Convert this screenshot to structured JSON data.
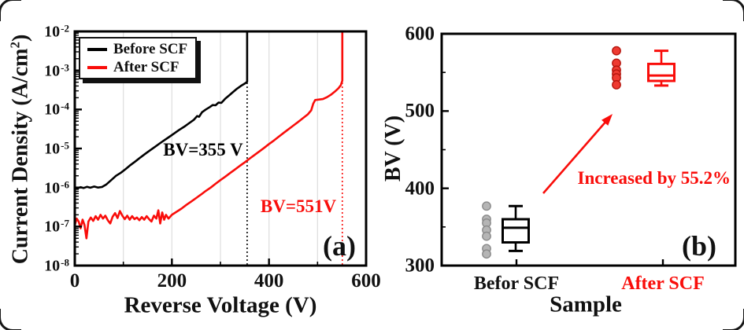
{
  "figure": {
    "panel_a": {
      "label": "(a)",
      "x_axis": {
        "title": "Reverse Voltage (V)",
        "min": 0,
        "max": 600,
        "major_ticks": [
          0,
          200,
          400,
          600
        ],
        "minor_ticks": [
          100,
          300,
          500
        ]
      },
      "y_axis": {
        "title_prefix": "Current Density (A/cm",
        "title_sup": "2",
        "title_suffix": ")",
        "base": "10",
        "tick_exponents": [
          -2,
          -3,
          -4,
          -5,
          -6,
          -7,
          -8
        ]
      },
      "legend": [
        {
          "label": "Before SCF",
          "color": "#000000"
        },
        {
          "label": "After SCF",
          "color": "#f90d0a"
        }
      ],
      "annotations": {
        "bv_before": "BV=355 V",
        "bv_after": "BV=551V"
      }
    },
    "panel_b": {
      "label": "(b)",
      "x_axis": {
        "title": "Sample",
        "categories": [
          {
            "label": "Befor SCF",
            "color": "#111111"
          },
          {
            "label": "After SCF",
            "color": "#f90d0a"
          }
        ]
      },
      "y_axis": {
        "title": "BV (V)",
        "min": 300,
        "max": 600,
        "major_ticks": [
          600,
          500,
          400,
          300
        ],
        "minor_ticks": [
          550,
          450,
          350
        ]
      },
      "annotation": {
        "text": "Increased by 55.2%"
      }
    }
  },
  "colors": {
    "black": "#000000",
    "red": "#f90d0a",
    "gridline": "#e0e0e0",
    "gray_dot_fill": "#b5b5b5",
    "gray_dot_stroke": "#8a8a8a",
    "red_dot_fill": "#ee3a31",
    "red_dot_stroke": "#b5150d"
  },
  "chart_data": [
    {
      "type": "line",
      "panel": "a",
      "title": "",
      "xlabel": "Reverse Voltage (V)",
      "ylabel": "Current Density (A/cm2)",
      "x_scale": "linear",
      "y_scale": "log",
      "xlim": [
        0,
        600
      ],
      "ylim": [
        1e-08,
        0.01
      ],
      "grid": "vertical-light",
      "legend_position": "top-left",
      "series": [
        {
          "name": "Before SCF",
          "color": "#000000",
          "breakdown_voltage_V": 355,
          "points": [
            [
              0,
              1e-06
            ],
            [
              6,
              9.6e-07
            ],
            [
              12,
              1.02e-06
            ],
            [
              18,
              9.7e-07
            ],
            [
              25,
              1.04e-06
            ],
            [
              32,
              9.9e-07
            ],
            [
              40,
              1.06e-06
            ],
            [
              48,
              1e-06
            ],
            [
              56,
              1.03e-06
            ],
            [
              65,
              1.2e-06
            ],
            [
              75,
              1.55e-06
            ],
            [
              85,
              2e-06
            ],
            [
              95,
              2.4e-06
            ],
            [
              105,
              3e-06
            ],
            [
              115,
              3.8e-06
            ],
            [
              125,
              4.7e-06
            ],
            [
              135,
              5.9e-06
            ],
            [
              145,
              7.3e-06
            ],
            [
              155,
              9e-06
            ],
            [
              165,
              1.1e-05
            ],
            [
              175,
              1.35e-05
            ],
            [
              185,
              1.65e-05
            ],
            [
              195,
              2e-05
            ],
            [
              205,
              2.45e-05
            ],
            [
              215,
              3e-05
            ],
            [
              225,
              3.6e-05
            ],
            [
              235,
              4.4e-05
            ],
            [
              245,
              5.4e-05
            ],
            [
              252,
              6.8e-05
            ],
            [
              256,
              6.5e-05
            ],
            [
              262,
              8.5e-05
            ],
            [
              270,
              0.0001
            ],
            [
              278,
              0.000115
            ],
            [
              284,
              0.00013
            ],
            [
              290,
              0.000128
            ],
            [
              296,
              0.00015
            ],
            [
              302,
              0.000148
            ],
            [
              310,
              0.00019
            ],
            [
              318,
              0.00023
            ],
            [
              326,
              0.00028
            ],
            [
              334,
              0.00034
            ],
            [
              342,
              0.0004
            ],
            [
              350,
              0.00046
            ],
            [
              354,
              0.0005
            ],
            [
              355,
              0.00052
            ],
            [
              355,
              0.01
            ]
          ]
        },
        {
          "name": "After SCF",
          "color": "#f90d0a",
          "breakdown_voltage_V": 551,
          "points": [
            [
              0,
              1.1e-07
            ],
            [
              4,
              1.6e-07
            ],
            [
              8,
              1.35e-07
            ],
            [
              12,
              9e-08
            ],
            [
              16,
              1.5e-07
            ],
            [
              20,
              1.1e-07
            ],
            [
              24,
              5e-08
            ],
            [
              28,
              1.35e-07
            ],
            [
              33,
              1.7e-07
            ],
            [
              38,
              1.4e-07
            ],
            [
              43,
              1.85e-07
            ],
            [
              48,
              1.5e-07
            ],
            [
              53,
              2e-07
            ],
            [
              58,
              1.6e-07
            ],
            [
              63,
              1.9e-07
            ],
            [
              68,
              1.45e-07
            ],
            [
              73,
              1.2e-07
            ],
            [
              78,
              1.8e-07
            ],
            [
              83,
              2.2e-07
            ],
            [
              88,
              1.65e-07
            ],
            [
              93,
              2.5e-07
            ],
            [
              98,
              1.9e-07
            ],
            [
              103,
              1.55e-07
            ],
            [
              108,
              1.9e-07
            ],
            [
              113,
              1.5e-07
            ],
            [
              118,
              1.85e-07
            ],
            [
              123,
              1.55e-07
            ],
            [
              128,
              1.7e-07
            ],
            [
              133,
              1.45e-07
            ],
            [
              138,
              1.75e-07
            ],
            [
              143,
              1.5e-07
            ],
            [
              148,
              1.85e-07
            ],
            [
              153,
              1.55e-07
            ],
            [
              158,
              1.35e-07
            ],
            [
              163,
              1.9e-07
            ],
            [
              168,
              1.6e-07
            ],
            [
              172,
              2.6e-07
            ],
            [
              176,
              1.2e-07
            ],
            [
              180,
              2.3e-07
            ],
            [
              184,
              1.5e-07
            ],
            [
              188,
              2e-07
            ],
            [
              193,
              1.6e-07
            ],
            [
              200,
              2e-07
            ],
            [
              210,
              2.4e-07
            ],
            [
              220,
              2.9e-07
            ],
            [
              230,
              3.6e-07
            ],
            [
              240,
              4.4e-07
            ],
            [
              250,
              5.4e-07
            ],
            [
              260,
              6.6e-07
            ],
            [
              270,
              8.2e-07
            ],
            [
              280,
              1e-06
            ],
            [
              290,
              1.25e-06
            ],
            [
              300,
              1.55e-06
            ],
            [
              310,
              1.9e-06
            ],
            [
              320,
              2.35e-06
            ],
            [
              330,
              2.9e-06
            ],
            [
              340,
              3.6e-06
            ],
            [
              350,
              4.4e-06
            ],
            [
              360,
              5.5e-06
            ],
            [
              370,
              6.8e-06
            ],
            [
              380,
              8.4e-06
            ],
            [
              390,
              1.04e-05
            ],
            [
              400,
              1.3e-05
            ],
            [
              410,
              1.6e-05
            ],
            [
              420,
              2e-05
            ],
            [
              430,
              2.5e-05
            ],
            [
              440,
              3.1e-05
            ],
            [
              450,
              3.85e-05
            ],
            [
              460,
              4.8e-05
            ],
            [
              470,
              6e-05
            ],
            [
              480,
              7.5e-05
            ],
            [
              487,
              9.5e-05
            ],
            [
              491,
              0.00014
            ],
            [
              495,
              0.000175
            ],
            [
              503,
              0.00018
            ],
            [
              511,
              0.000185
            ],
            [
              519,
              0.000205
            ],
            [
              528,
              0.00024
            ],
            [
              536,
              0.00029
            ],
            [
              543,
              0.00035
            ],
            [
              548,
              0.00042
            ],
            [
              551,
              0.00055
            ],
            [
              551,
              0.01
            ]
          ]
        }
      ],
      "guide_lines": [
        {
          "x": 355,
          "style": "dotted",
          "color": "#000000",
          "label": "BV=355 V"
        },
        {
          "x": 551,
          "style": "dotted",
          "color": "#f90d0a",
          "label": "BV=551V"
        }
      ]
    },
    {
      "type": "box",
      "panel": "b",
      "title": "",
      "xlabel": "Sample",
      "ylabel": "BV (V)",
      "ylim": [
        300,
        600
      ],
      "grid": "off",
      "categories": [
        "Befor SCF",
        "After SCF"
      ],
      "boxes": [
        {
          "category": "Befor SCF",
          "whisker_low": 319,
          "q1": 330,
          "median": 349,
          "q3": 360,
          "whisker_high": 377
        },
        {
          "category": "After SCF",
          "whisker_low": 533,
          "q1": 539,
          "median": 546,
          "q3": 561,
          "whisker_high": 578
        }
      ],
      "scatter": [
        {
          "category": "Befor SCF",
          "values": [
            377,
            360,
            355,
            346,
            338,
            322,
            315
          ]
        },
        {
          "category": "After SCF",
          "values": [
            578,
            562,
            553,
            548,
            543,
            534
          ]
        }
      ],
      "annotation": "Increased by 55.2%"
    }
  ]
}
